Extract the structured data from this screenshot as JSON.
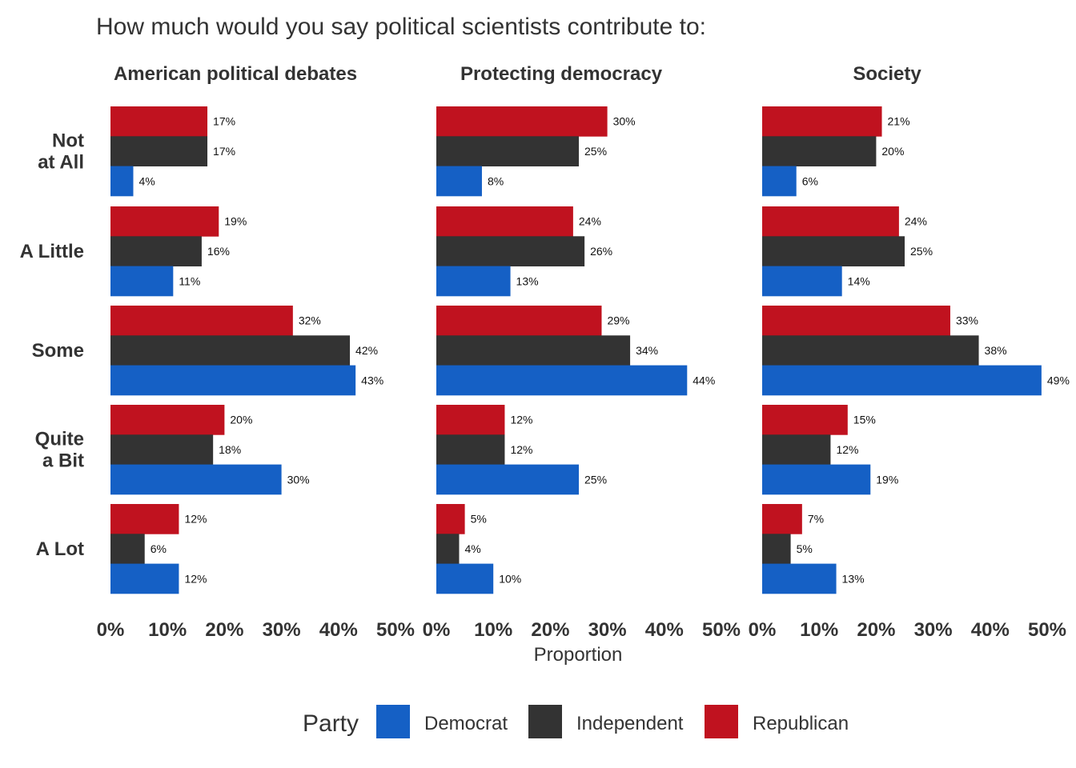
{
  "chart_data": {
    "type": "bar",
    "orientation": "horizontal",
    "title": "How much would you say political scientists contribute to:",
    "xlabel": "Proportion",
    "xlim": [
      0,
      50
    ],
    "xticks": [
      "0%",
      "10%",
      "20%",
      "30%",
      "40%",
      "50%"
    ],
    "categories": [
      "Not at All",
      "A Little",
      "Some",
      "Quite a Bit",
      "A Lot"
    ],
    "category_labels": [
      [
        "Not",
        "at All"
      ],
      [
        "A Little"
      ],
      [
        "Some"
      ],
      [
        "Quite",
        "a Bit"
      ],
      [
        "A Lot"
      ]
    ],
    "legend_title": "Party",
    "legend": [
      {
        "name": "Democrat",
        "color": "#1560c5"
      },
      {
        "name": "Independent",
        "color": "#333333"
      },
      {
        "name": "Republican",
        "color": "#c0121f"
      }
    ],
    "series_draw_order": [
      "Republican",
      "Independent",
      "Democrat"
    ],
    "panels": [
      {
        "title": "American political debates",
        "series": [
          {
            "name": "Republican",
            "values": [
              17,
              19,
              32,
              20,
              12
            ],
            "labels": [
              "17%",
              "19%",
              "32%",
              "20%",
              "12%"
            ]
          },
          {
            "name": "Independent",
            "values": [
              17,
              16,
              42,
              18,
              6
            ],
            "labels": [
              "17%",
              "16%",
              "42%",
              "18%",
              "6%"
            ]
          },
          {
            "name": "Democrat",
            "values": [
              4,
              11,
              43,
              30,
              12
            ],
            "labels": [
              "4%",
              "11%",
              "43%",
              "30%",
              "12%"
            ]
          }
        ]
      },
      {
        "title": "Protecting democracy",
        "series": [
          {
            "name": "Republican",
            "values": [
              30,
              24,
              29,
              12,
              5
            ],
            "labels": [
              "30%",
              "24%",
              "29%",
              "12%",
              "5%"
            ]
          },
          {
            "name": "Independent",
            "values": [
              25,
              26,
              34,
              12,
              4
            ],
            "labels": [
              "25%",
              "26%",
              "34%",
              "12%",
              "4%"
            ]
          },
          {
            "name": "Democrat",
            "values": [
              8,
              13,
              44,
              25,
              10
            ],
            "labels": [
              "8%",
              "13%",
              "44%",
              "25%",
              "10%"
            ]
          }
        ]
      },
      {
        "title": "Society",
        "series": [
          {
            "name": "Republican",
            "values": [
              21,
              24,
              33,
              15,
              7
            ],
            "labels": [
              "21%",
              "24%",
              "33%",
              "15%",
              "7%"
            ]
          },
          {
            "name": "Independent",
            "values": [
              20,
              25,
              38,
              12,
              5
            ],
            "labels": [
              "20%",
              "25%",
              "38%",
              "12%",
              "5%"
            ]
          },
          {
            "name": "Democrat",
            "values": [
              6,
              14,
              49,
              19,
              13
            ],
            "labels": [
              "6%",
              "14%",
              "49%",
              "19%",
              "13%"
            ]
          }
        ]
      }
    ]
  }
}
